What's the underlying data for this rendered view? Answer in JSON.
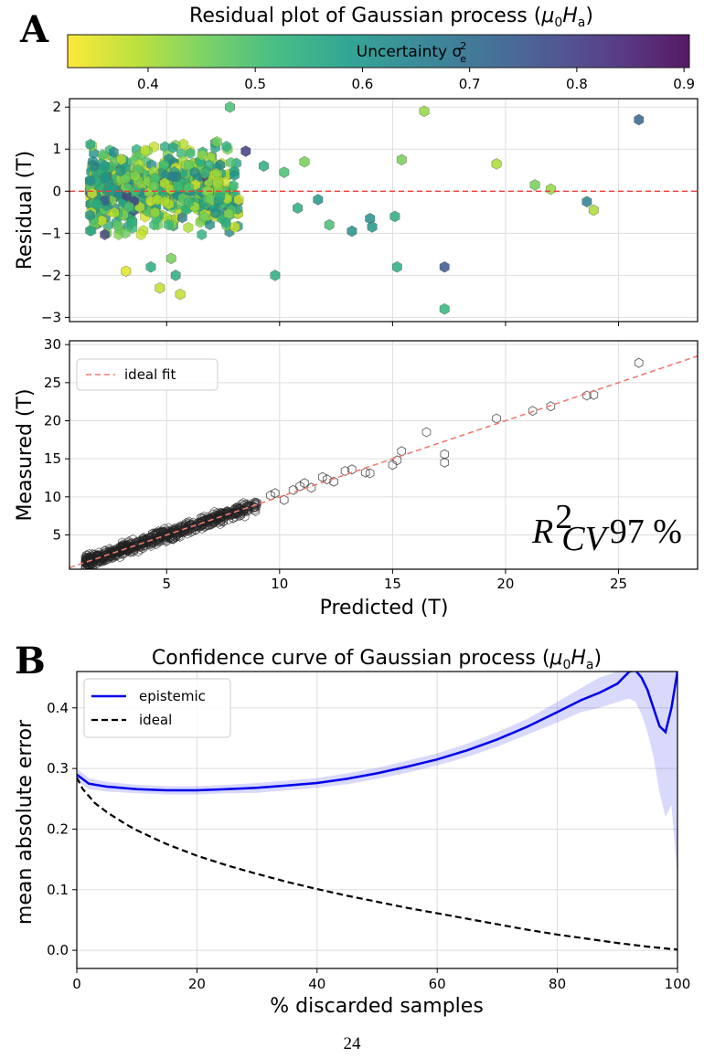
{
  "page_number": "24",
  "panel_a": {
    "label": "A",
    "title_text": "Residual plot of Gaussian process (",
    "title_math": "μ0Ha",
    "colorbar": {
      "label_text": "Uncertainty σ",
      "label_sup": "2",
      "label_sub": "e",
      "ticks": [
        "0.4",
        "0.5",
        "0.6",
        "0.7",
        "0.8",
        "0.9"
      ],
      "range": [
        0.325,
        0.905
      ],
      "colormap": [
        "#fde725",
        "#b5de2b",
        "#6ece58",
        "#35b779",
        "#1f9e89",
        "#26828e",
        "#31688e",
        "#3e4989",
        "#482878",
        "#440154"
      ]
    },
    "chart_data": [
      {
        "type": "scatter",
        "title": "",
        "xlabel": "",
        "ylabel": "Residual (T)",
        "xlim": [
          0.7,
          28.5
        ],
        "ylim": [
          -3.1,
          2.2
        ],
        "yticks": [
          "−3",
          "−2",
          "−1",
          "0",
          "1",
          "2"
        ],
        "grid": true,
        "reference_line": {
          "y": 0,
          "color": "#e8413c",
          "style": "dashed"
        },
        "points_note": "dense cluster of ~1000 hexbin samples between predicted 1.5 and 8, residual −1.5 to 1",
        "outliers": [
          {
            "x": 7.8,
            "y": 2.0,
            "c": 0.5
          },
          {
            "x": 16.4,
            "y": 1.9,
            "c": 0.42
          },
          {
            "x": 25.9,
            "y": 1.7,
            "c": 0.72
          },
          {
            "x": 8.5,
            "y": 0.95,
            "c": 0.8
          },
          {
            "x": 9.3,
            "y": 0.6,
            "c": 0.55
          },
          {
            "x": 11.1,
            "y": 0.7,
            "c": 0.45
          },
          {
            "x": 15.4,
            "y": 0.75,
            "c": 0.45
          },
          {
            "x": 19.6,
            "y": 0.65,
            "c": 0.4
          },
          {
            "x": 21.3,
            "y": 0.15,
            "c": 0.45
          },
          {
            "x": 22.0,
            "y": 0.05,
            "c": 0.42
          },
          {
            "x": 23.6,
            "y": -0.25,
            "c": 0.65
          },
          {
            "x": 23.9,
            "y": -0.45,
            "c": 0.4
          },
          {
            "x": 10.8,
            "y": -0.4,
            "c": 0.55
          },
          {
            "x": 12.2,
            "y": -0.8,
            "c": 0.5
          },
          {
            "x": 13.2,
            "y": -0.95,
            "c": 0.62
          },
          {
            "x": 14.0,
            "y": -0.65,
            "c": 0.62
          },
          {
            "x": 14.1,
            "y": -0.85,
            "c": 0.6
          },
          {
            "x": 15.1,
            "y": -0.6,
            "c": 0.55
          },
          {
            "x": 15.2,
            "y": -1.8,
            "c": 0.55
          },
          {
            "x": 17.3,
            "y": -1.8,
            "c": 0.75
          },
          {
            "x": 17.3,
            "y": -2.8,
            "c": 0.52
          },
          {
            "x": 9.8,
            "y": -2.0,
            "c": 0.55
          },
          {
            "x": 4.3,
            "y": -1.8,
            "c": 0.55
          },
          {
            "x": 5.4,
            "y": -2.0,
            "c": 0.55
          },
          {
            "x": 3.2,
            "y": -1.9,
            "c": 0.35
          },
          {
            "x": 4.7,
            "y": -2.3,
            "c": 0.38
          },
          {
            "x": 5.6,
            "y": -2.45,
            "c": 0.38
          },
          {
            "x": 5.2,
            "y": -1.6,
            "c": 0.45
          },
          {
            "x": 10.2,
            "y": 0.45,
            "c": 0.5
          },
          {
            "x": 11.7,
            "y": -0.2,
            "c": 0.6
          }
        ]
      },
      {
        "type": "scatter",
        "title": "",
        "xlabel": "Predicted (T)",
        "ylabel": "Measured (T)",
        "xlim": [
          0.7,
          28.5
        ],
        "ylim": [
          0.5,
          30.5
        ],
        "xticks": [
          "5",
          "10",
          "15",
          "20",
          "25"
        ],
        "yticks": [
          "5",
          "10",
          "15",
          "20",
          "25",
          "30"
        ],
        "grid": true,
        "legend": {
          "label": "ideal fit",
          "position": "top-left"
        },
        "annotation": {
          "r2_symbol": "R",
          "r2_sup": "2",
          "r2_sub": "CV",
          "value": "97 %"
        },
        "points_note": "dense cluster along y = x from 1.5 to 9",
        "points": [
          [
            9.6,
            10.2
          ],
          [
            9.8,
            10.5
          ],
          [
            10.2,
            9.6
          ],
          [
            10.6,
            10.9
          ],
          [
            10.9,
            11.4
          ],
          [
            11.1,
            11.8
          ],
          [
            11.4,
            11.2
          ],
          [
            11.9,
            12.6
          ],
          [
            12.1,
            12.3
          ],
          [
            12.4,
            12.0
          ],
          [
            12.9,
            13.4
          ],
          [
            13.2,
            13.6
          ],
          [
            13.8,
            13.2
          ],
          [
            14.0,
            13.1
          ],
          [
            15.0,
            14.2
          ],
          [
            15.2,
            14.8
          ],
          [
            15.4,
            16.0
          ],
          [
            16.5,
            18.5
          ],
          [
            17.3,
            14.5
          ],
          [
            17.3,
            15.6
          ],
          [
            19.6,
            20.3
          ],
          [
            21.2,
            21.3
          ],
          [
            22.0,
            21.9
          ],
          [
            23.6,
            23.3
          ],
          [
            23.9,
            23.4
          ],
          [
            25.9,
            27.6
          ]
        ]
      }
    ]
  },
  "panel_b": {
    "label": "B",
    "title_text": "Confidence curve of Gaussian process (",
    "title_math": "μ0Ha",
    "chart_data": {
      "type": "line",
      "title": "",
      "xlabel": "% discarded samples",
      "ylabel": "mean absolute error",
      "xlim": [
        0,
        100
      ],
      "ylim": [
        -0.03,
        0.46
      ],
      "xticks": [
        "0",
        "20",
        "40",
        "60",
        "80",
        "100"
      ],
      "yticks": [
        "0.0",
        "0.1",
        "0.2",
        "0.3",
        "0.4"
      ],
      "grid": true,
      "legend_position": "top-left",
      "series": [
        {
          "name": "epistemic",
          "color": "#0000ee",
          "style": "solid",
          "x": [
            0,
            2,
            5,
            10,
            15,
            20,
            25,
            30,
            35,
            40,
            45,
            50,
            55,
            60,
            65,
            70,
            75,
            80,
            84,
            87,
            90,
            92,
            93,
            94,
            95,
            96,
            97,
            98,
            99,
            100
          ],
          "y": [
            0.29,
            0.275,
            0.27,
            0.266,
            0.264,
            0.264,
            0.266,
            0.268,
            0.272,
            0.276,
            0.283,
            0.292,
            0.303,
            0.315,
            0.33,
            0.348,
            0.369,
            0.393,
            0.413,
            0.425,
            0.44,
            0.46,
            0.462,
            0.45,
            0.43,
            0.4,
            0.37,
            0.36,
            0.4,
            0.46
          ],
          "band_upper": [
            0.3,
            0.284,
            0.278,
            0.273,
            0.271,
            0.271,
            0.273,
            0.276,
            0.28,
            0.284,
            0.292,
            0.301,
            0.313,
            0.325,
            0.341,
            0.36,
            0.382,
            0.41,
            0.433,
            0.45,
            0.46,
            0.47,
            0.47,
            0.47,
            0.47,
            0.47,
            0.47,
            0.47,
            0.47,
            0.47
          ],
          "band_lower": [
            0.28,
            0.266,
            0.262,
            0.259,
            0.257,
            0.257,
            0.259,
            0.26,
            0.264,
            0.268,
            0.274,
            0.283,
            0.293,
            0.305,
            0.319,
            0.336,
            0.356,
            0.376,
            0.393,
            0.4,
            0.41,
            0.415,
            0.41,
            0.39,
            0.36,
            0.32,
            0.26,
            0.22,
            0.24,
            0.12
          ]
        },
        {
          "name": "ideal",
          "color": "#000000",
          "style": "dashed",
          "x": [
            0,
            1,
            3,
            5,
            8,
            10,
            15,
            20,
            25,
            30,
            35,
            40,
            45,
            50,
            55,
            60,
            65,
            70,
            75,
            80,
            85,
            90,
            95,
            100
          ],
          "y": [
            0.285,
            0.266,
            0.243,
            0.228,
            0.209,
            0.198,
            0.175,
            0.156,
            0.14,
            0.126,
            0.113,
            0.101,
            0.09,
            0.08,
            0.07,
            0.061,
            0.052,
            0.043,
            0.034,
            0.026,
            0.019,
            0.012,
            0.006,
            0.001
          ]
        }
      ]
    }
  }
}
